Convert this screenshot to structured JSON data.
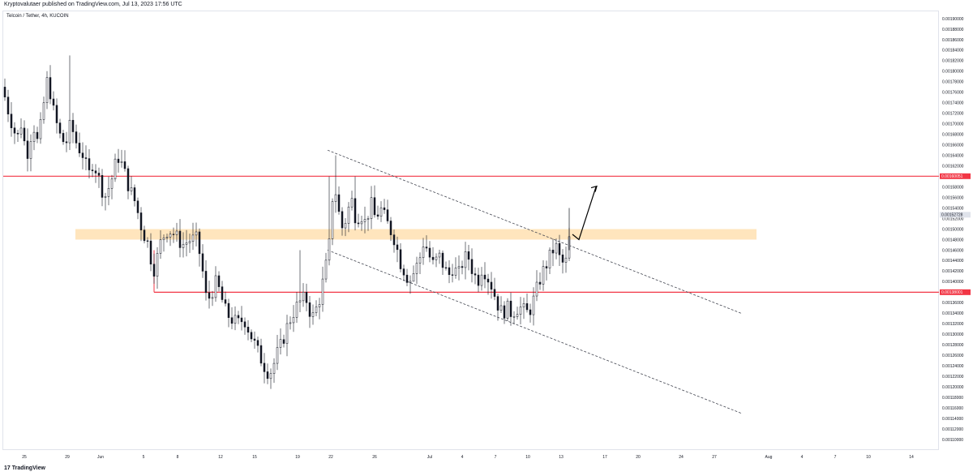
{
  "header": {
    "publisher_text": "Kryptovalutaer published on TradingView.com, Jul 13, 2023 17:56 UTC",
    "symbol_text": "Telcoin / Tether, 4h, KUCOIN"
  },
  "footer": {
    "logo_mark": "17",
    "logo_text": "TradingView"
  },
  "colors": {
    "background": "#ffffff",
    "candle": "#131722",
    "resistance_line": "#f23645",
    "zone_fill": "#ffe0b2",
    "channel_line": "#434651",
    "arrow": "#000000",
    "grid_frame": "#e0e3eb"
  },
  "chart_data": {
    "type": "candlestick",
    "symbol": "Telcoin / Tether",
    "timeframe": "4h",
    "exchange": "KUCOIN",
    "ylim": [
      0.00109,
      0.00191
    ],
    "y_ticks": [
      "0.00190000",
      "0.00188000",
      "0.00186000",
      "0.00184000",
      "0.00182000",
      "0.00180000",
      "0.00178000",
      "0.00176000",
      "0.00174000",
      "0.00172000",
      "0.00170000",
      "0.00168000",
      "0.00166000",
      "0.00164000",
      "0.00162000",
      "0.00158000",
      "0.00156000",
      "0.00154000",
      "0.00152000",
      "0.00150000",
      "0.00148000",
      "0.00146000",
      "0.00144000",
      "0.00142000",
      "0.00140000",
      "0.00138000",
      "0.00136000",
      "0.00134000",
      "0.00132000",
      "0.00130000",
      "0.00128000",
      "0.00126000",
      "0.00124000",
      "0.00122000",
      "0.00120000",
      "0.00118000",
      "0.00116000",
      "0.00114000",
      "0.00112000",
      "0.00110000"
    ],
    "x_ticks": [
      "25",
      "29",
      "Jun",
      "5",
      "8",
      "12",
      "15",
      "19",
      "22",
      "26",
      "Jul",
      "4",
      "7",
      "10",
      "13",
      "17",
      "20",
      "24",
      "27",
      "Aug",
      "4",
      "7",
      "10",
      "14"
    ],
    "levels": [
      {
        "name": "resistance",
        "value": 0.00160051,
        "label": "0.00160051"
      },
      {
        "name": "support",
        "value": 0.00138001,
        "label": "0.00138001"
      }
    ],
    "current_price": {
      "value": 0.00152728,
      "label": "0.00152728"
    },
    "zone": {
      "from": 0.00148,
      "to": 0.0015
    },
    "channel": {
      "upper": [
        {
          "i": 0,
          "v": 0.00165
        },
        {
          "i": 1,
          "v": 0.00134
        }
      ],
      "lower": [
        {
          "i": 0,
          "v": 0.00146
        },
        {
          "i": 1,
          "v": 0.00115
        }
      ]
    },
    "candles_summary": {
      "count": 175,
      "high": 0.00183,
      "low": 0.00122,
      "last_close": 0.00152728
    }
  }
}
